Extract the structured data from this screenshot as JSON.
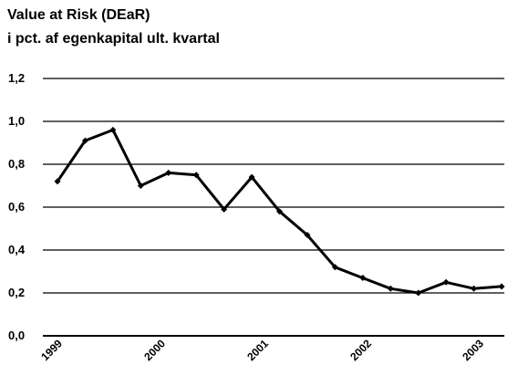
{
  "chart_data": {
    "type": "line",
    "title": "Value at Risk (DEaR)",
    "subtitle": "i pct. af egenkapital ult. kvartal",
    "ylim": [
      0,
      1.2
    ],
    "yticks": [
      "0,0",
      "0,2",
      "0,4",
      "0,6",
      "0,8",
      "1,0",
      "1,2"
    ],
    "xtick_labels": [
      "1999",
      "2000",
      "2001",
      "2002",
      "2003"
    ],
    "grid": true,
    "series": [
      {
        "values": [
          0.72,
          0.91,
          0.96,
          0.7,
          0.76,
          0.75,
          0.59,
          0.74,
          0.58,
          0.47,
          0.32,
          0.27,
          0.22,
          0.2,
          0.25,
          0.22,
          0.23
        ],
        "color": "#000000"
      }
    ]
  }
}
